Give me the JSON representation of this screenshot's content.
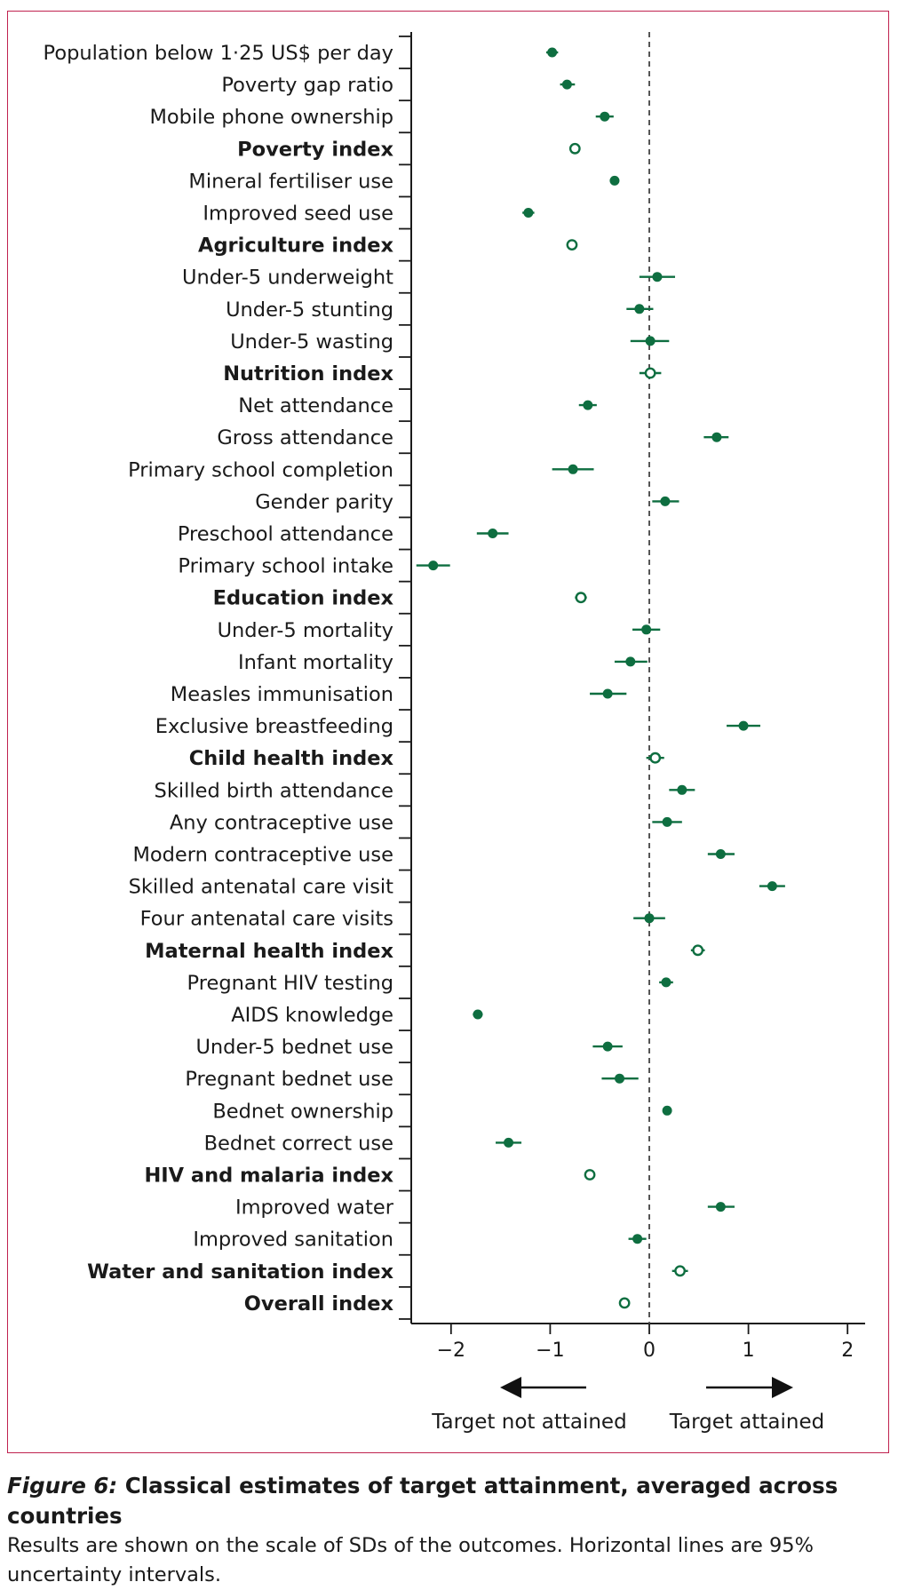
{
  "chart_data": {
    "type": "forest",
    "xlim": [
      -2.4,
      2.15
    ],
    "xticks": [
      -2,
      -1,
      0,
      1,
      2
    ],
    "xtick_labels": [
      "−2",
      "−1",
      "0",
      "1",
      "2"
    ],
    "reference_line": 0,
    "grid": false,
    "arrows": {
      "left_label": "Target not attained",
      "right_label": "Target attained"
    },
    "colors": {
      "marker": "#0e6e40",
      "reference": "#555555",
      "frame": "#c0224f"
    },
    "rows": [
      {
        "label": "Population below 1·25 US$ per day",
        "est": -0.98,
        "lo": -1.04,
        "hi": -0.92,
        "index": false
      },
      {
        "label": "Poverty gap ratio",
        "est": -0.83,
        "lo": -0.9,
        "hi": -0.75,
        "index": false
      },
      {
        "label": "Mobile phone ownership",
        "est": -0.45,
        "lo": -0.54,
        "hi": -0.36,
        "index": false
      },
      {
        "label": "Poverty index",
        "est": -0.75,
        "lo": -0.8,
        "hi": -0.7,
        "index": true
      },
      {
        "label": "Mineral fertiliser use",
        "est": -0.35,
        "lo": -0.39,
        "hi": -0.31,
        "index": false
      },
      {
        "label": "Improved seed use",
        "est": -1.22,
        "lo": -1.28,
        "hi": -1.16,
        "index": false
      },
      {
        "label": "Agriculture index",
        "est": -0.78,
        "lo": -0.82,
        "hi": -0.74,
        "index": true
      },
      {
        "label": "Under-5 underweight",
        "est": 0.08,
        "lo": -0.1,
        "hi": 0.26,
        "index": false
      },
      {
        "label": "Under-5 stunting",
        "est": -0.1,
        "lo": -0.23,
        "hi": 0.04,
        "index": false
      },
      {
        "label": "Under-5 wasting",
        "est": 0.01,
        "lo": -0.19,
        "hi": 0.2,
        "index": false
      },
      {
        "label": "Nutrition index",
        "est": 0.01,
        "lo": -0.1,
        "hi": 0.12,
        "index": true
      },
      {
        "label": "Net attendance",
        "est": -0.62,
        "lo": -0.71,
        "hi": -0.53,
        "index": false
      },
      {
        "label": "Gross attendance",
        "est": 0.68,
        "lo": 0.55,
        "hi": 0.8,
        "index": false
      },
      {
        "label": "Primary school completion",
        "est": -0.77,
        "lo": -0.98,
        "hi": -0.56,
        "index": false
      },
      {
        "label": "Gender parity",
        "est": 0.16,
        "lo": 0.03,
        "hi": 0.3,
        "index": false
      },
      {
        "label": "Preschool attendance",
        "est": -1.58,
        "lo": -1.74,
        "hi": -1.42,
        "index": false
      },
      {
        "label": "Primary school intake",
        "est": -2.18,
        "lo": -2.35,
        "hi": -2.01,
        "index": false
      },
      {
        "label": "Education index",
        "est": -0.69,
        "lo": -0.75,
        "hi": -0.63,
        "index": true
      },
      {
        "label": "Under-5 mortality",
        "est": -0.03,
        "lo": -0.17,
        "hi": 0.11,
        "index": false
      },
      {
        "label": "Infant mortality",
        "est": -0.19,
        "lo": -0.35,
        "hi": -0.02,
        "index": false
      },
      {
        "label": "Measles immunisation",
        "est": -0.42,
        "lo": -0.6,
        "hi": -0.23,
        "index": false
      },
      {
        "label": "Exclusive breastfeeding",
        "est": 0.95,
        "lo": 0.78,
        "hi": 1.12,
        "index": false
      },
      {
        "label": "Child health index",
        "est": 0.06,
        "lo": -0.03,
        "hi": 0.15,
        "index": true
      },
      {
        "label": "Skilled birth attendance",
        "est": 0.33,
        "lo": 0.2,
        "hi": 0.46,
        "index": false
      },
      {
        "label": "Any contraceptive use",
        "est": 0.18,
        "lo": 0.03,
        "hi": 0.33,
        "index": false
      },
      {
        "label": "Modern contraceptive use",
        "est": 0.72,
        "lo": 0.59,
        "hi": 0.86,
        "index": false
      },
      {
        "label": "Skilled antenatal care visit",
        "est": 1.24,
        "lo": 1.11,
        "hi": 1.37,
        "index": false
      },
      {
        "label": "Four antenatal care visits",
        "est": 0.0,
        "lo": -0.16,
        "hi": 0.16,
        "index": false
      },
      {
        "label": "Maternal health index",
        "est": 0.49,
        "lo": 0.42,
        "hi": 0.56,
        "index": true
      },
      {
        "label": "Pregnant HIV testing",
        "est": 0.17,
        "lo": 0.1,
        "hi": 0.24,
        "index": false
      },
      {
        "label": "AIDS knowledge",
        "est": -1.73,
        "lo": -1.78,
        "hi": -1.68,
        "index": false
      },
      {
        "label": "Under-5 bednet use",
        "est": -0.42,
        "lo": -0.57,
        "hi": -0.27,
        "index": false
      },
      {
        "label": "Pregnant bednet use",
        "est": -0.3,
        "lo": -0.48,
        "hi": -0.11,
        "index": false
      },
      {
        "label": "Bednet ownership",
        "est": 0.18,
        "lo": 0.14,
        "hi": 0.22,
        "index": false
      },
      {
        "label": "Bednet correct use",
        "est": -1.42,
        "lo": -1.55,
        "hi": -1.29,
        "index": false
      },
      {
        "label": "HIV and malaria index",
        "est": -0.6,
        "lo": -0.65,
        "hi": -0.55,
        "index": true
      },
      {
        "label": "Improved water",
        "est": 0.72,
        "lo": 0.59,
        "hi": 0.86,
        "index": false
      },
      {
        "label": "Improved sanitation",
        "est": -0.12,
        "lo": -0.21,
        "hi": -0.03,
        "index": false
      },
      {
        "label": "Water and sanitation index",
        "est": 0.31,
        "lo": 0.23,
        "hi": 0.39,
        "index": true
      },
      {
        "label": "Overall index",
        "est": -0.25,
        "lo": -0.29,
        "hi": -0.21,
        "index": true
      }
    ]
  },
  "caption": {
    "fig_label": "Figure 6:",
    "title": " Classical estimates of target attainment, averaged across countries",
    "body": "Results are shown on the scale of SDs of the outcomes. Horizontal lines are 95% uncertainty intervals."
  }
}
